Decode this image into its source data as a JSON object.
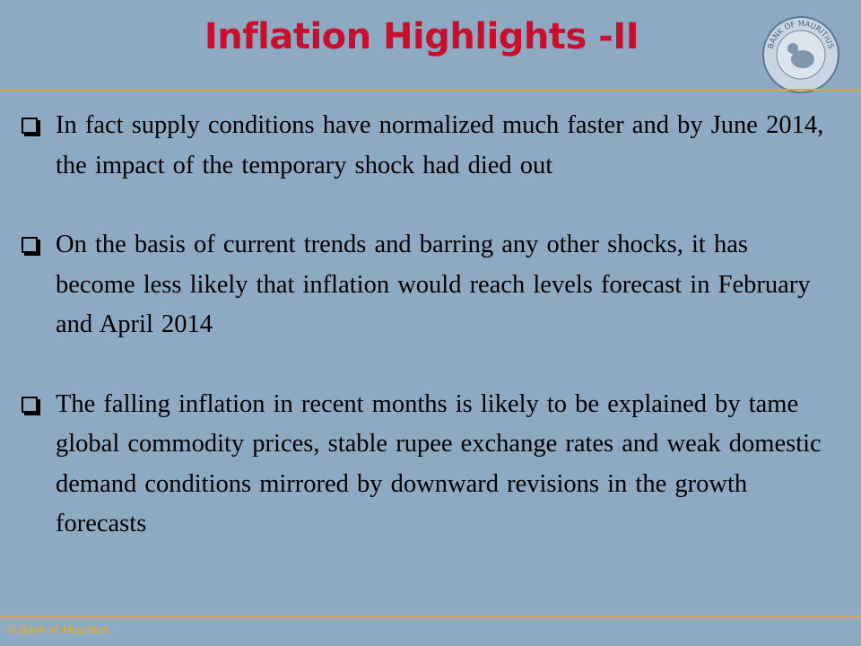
{
  "header": {
    "title": "Inflation Highlights -II",
    "logo_text": "BANK OF MAURITIUS"
  },
  "bullets": [
    "In fact supply conditions have normalized much faster and by June 2014, the impact of the temporary shock had died out",
    "On the basis of current trends and barring any other shocks, it has become less likely that inflation would reach levels forecast in February and April 2014",
    "The falling inflation in recent months  is likely to be explained by tame global commodity prices, stable rupee exchange rates and weak domestic demand conditions mirrored by downward revisions in the growth forecasts"
  ],
  "footer": "© Bank of Mauritius"
}
